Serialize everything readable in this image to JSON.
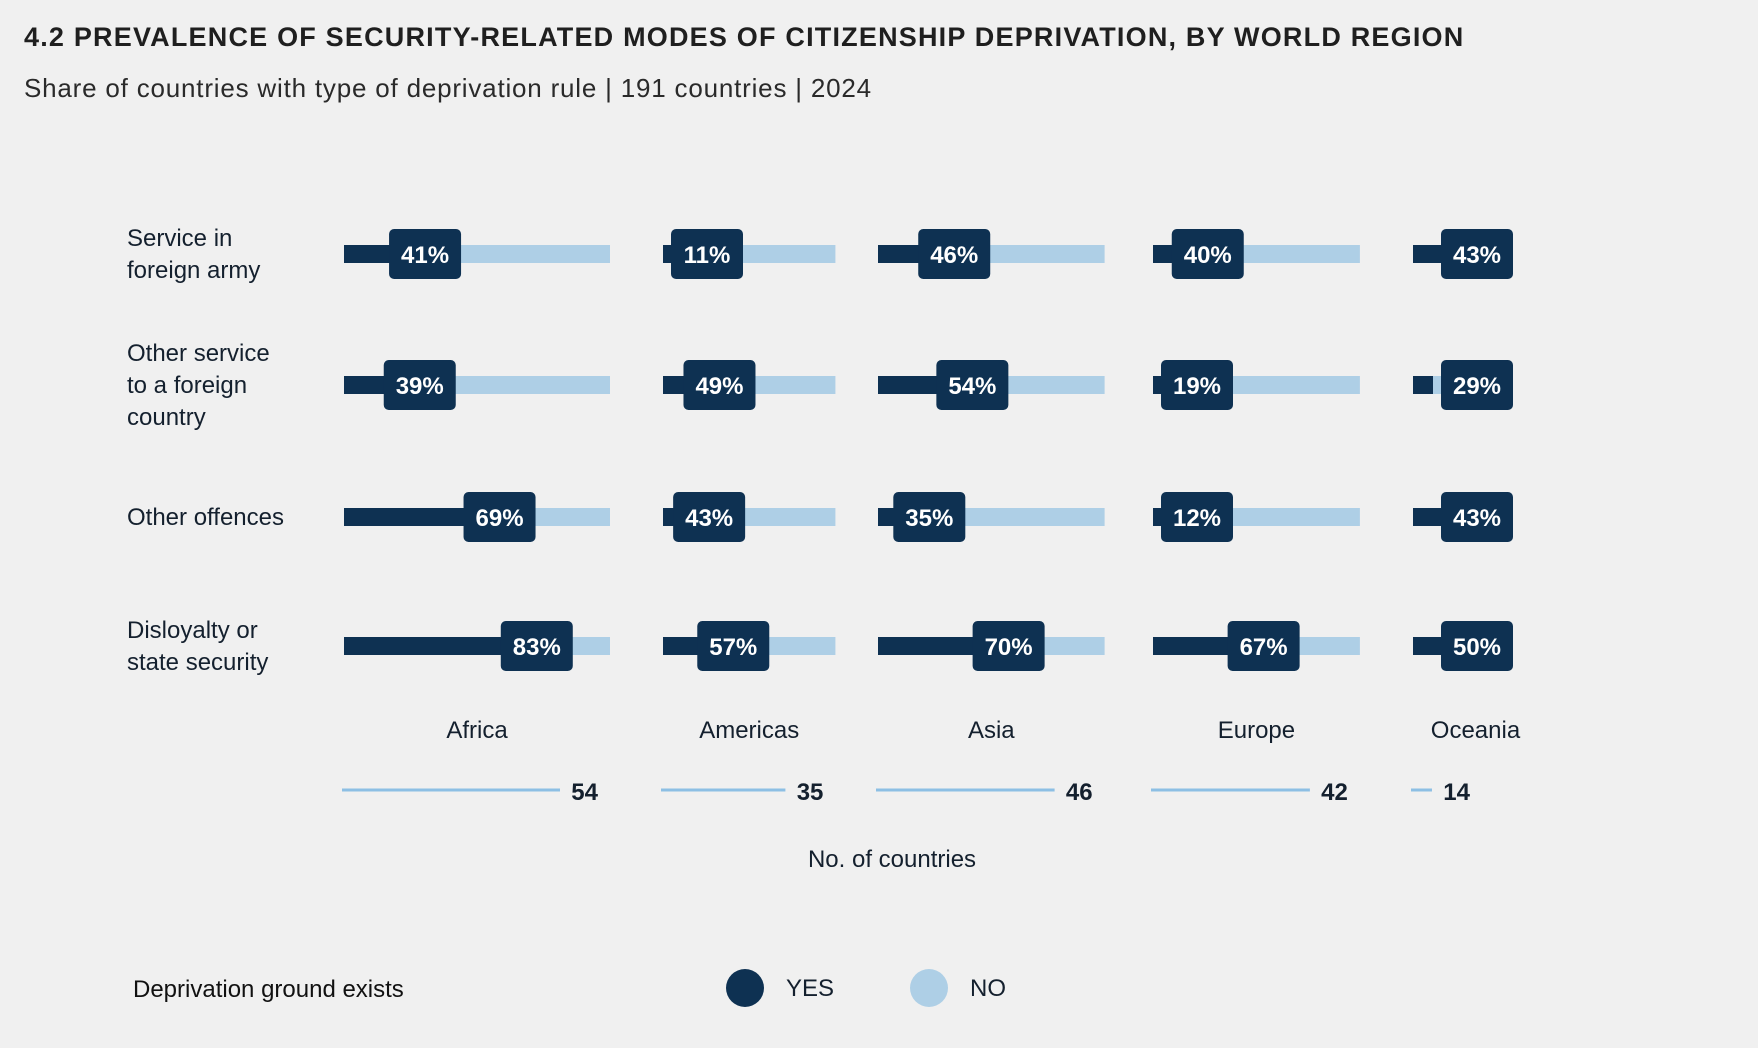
{
  "header": {
    "title": "4.2 PREVALENCE OF SECURITY-RELATED MODES OF CITIZENSHIP DEPRIVATION, BY WORLD REGION",
    "subtitle": "Share of countries with type of deprivation rule | 191 countries | 2024"
  },
  "colors": {
    "yes": "#0e3152",
    "no": "#aecfe6",
    "count_line": "#8dbfe4",
    "background": "#f0f0f0"
  },
  "chart_data": {
    "type": "bar",
    "subtype": "stacked-horizontal-100-percent-small-multiples",
    "title": "4.2 PREVALENCE OF SECURITY-RELATED MODES OF CITIZENSHIP DEPRIVATION, BY WORLD REGION",
    "subtitle": "Share of countries with type of deprivation rule | 191 countries | 2024",
    "categories": [
      "Service in foreign army",
      "Other service to a foreign country",
      "Other offences",
      "Disloyalty or state security"
    ],
    "category_lines": [
      [
        "Service in",
        "foreign army"
      ],
      [
        "Other service",
        "to a foreign",
        "country"
      ],
      [
        "Other offences"
      ],
      [
        "Disloyalty or",
        "state security"
      ]
    ],
    "regions": [
      "Africa",
      "Americas",
      "Asia",
      "Europe",
      "Oceania"
    ],
    "region_counts": [
      54,
      35,
      46,
      42,
      14
    ],
    "count_axis_label": "No. of countries",
    "series": [
      {
        "name": "Africa",
        "yes_percent": [
          41,
          39,
          69,
          83
        ]
      },
      {
        "name": "Americas",
        "yes_percent": [
          11,
          49,
          43,
          57
        ]
      },
      {
        "name": "Asia",
        "yes_percent": [
          46,
          54,
          35,
          70
        ]
      },
      {
        "name": "Europe",
        "yes_percent": [
          40,
          19,
          12,
          67
        ]
      },
      {
        "name": "Oceania",
        "yes_percent": [
          43,
          29,
          43,
          50
        ]
      }
    ],
    "value_labels": [
      [
        "41%",
        "39%",
        "69%",
        "83%"
      ],
      [
        "11%",
        "49%",
        "43%",
        "57%"
      ],
      [
        "46%",
        "54%",
        "35%",
        "70%"
      ],
      [
        "40%",
        "19%",
        "12%",
        "67%"
      ],
      [
        "43%",
        "29%",
        "43%",
        "50%"
      ]
    ],
    "legend": {
      "title": "Deprivation ground exists",
      "items": [
        {
          "label": "YES",
          "key": "yes"
        },
        {
          "label": "NO",
          "key": "no"
        }
      ],
      "position": "bottom"
    },
    "xlim": [
      0,
      100
    ],
    "grid": false
  }
}
